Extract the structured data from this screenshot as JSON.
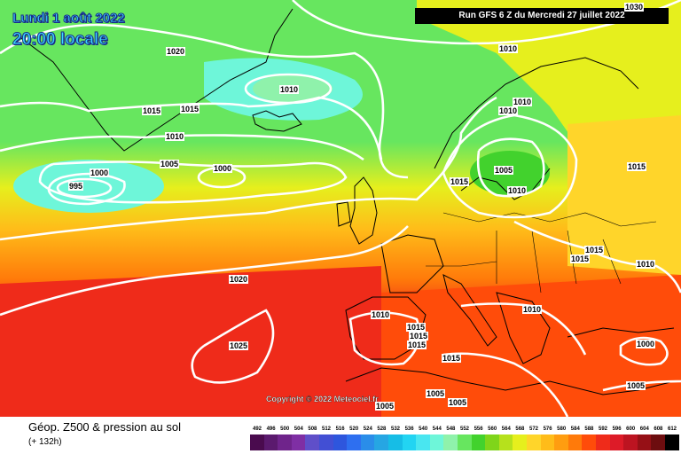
{
  "header": {
    "date_line": "Lundi 1 août 2022",
    "time_line": "20:00 locale",
    "run_info": "Run GFS 6 Z du Mercredi 27 juillet 2022"
  },
  "footer": {
    "title": "Géop. Z500 & pression au sol",
    "subtitle": "(+ 132h)",
    "copyright": "Copyright © 2022 Meteociel.fr"
  },
  "scale": {
    "values": [
      "492",
      "496",
      "500",
      "504",
      "508",
      "512",
      "516",
      "520",
      "524",
      "528",
      "532",
      "536",
      "540",
      "544",
      "548",
      "552",
      "556",
      "560",
      "564",
      "568",
      "572",
      "576",
      "580",
      "584",
      "588",
      "592",
      "596",
      "600",
      "604",
      "608",
      "612"
    ],
    "colors": [
      "#4a0b4e",
      "#5b1a6e",
      "#6f248b",
      "#7f2fa4",
      "#5f4fc9",
      "#424fd4",
      "#2e56dd",
      "#2e6ff0",
      "#2a8de9",
      "#26a6e3",
      "#16bde6",
      "#22d4f2",
      "#49e6f0",
      "#6ef6d9",
      "#8ff2ab",
      "#67e65f",
      "#42d22d",
      "#7fd51a",
      "#b6e11c",
      "#e6ef1d",
      "#ffd52a",
      "#ffbc19",
      "#ff9d10",
      "#ff7a0a",
      "#ff4c0a",
      "#ef2b1a",
      "#dd1b28",
      "#bd1421",
      "#961016",
      "#6d0d0f",
      "#000000"
    ]
  },
  "map_colors": {
    "green": "#67e65f",
    "light_green": "#8ff2ab",
    "cyan": "#6ef6d9",
    "yellow": "#e6ef1d",
    "orange": "#ff7a0a",
    "red": "#ef2b1a",
    "contour": "#ffffff",
    "coast": "#000000"
  },
  "isobar_labels": [
    {
      "value": "1030",
      "pos": "top-right"
    },
    {
      "value": "1020",
      "pos": "north-atlantic"
    },
    {
      "value": "1010",
      "pos": "iceland-low"
    },
    {
      "value": "1010",
      "pos": "norway"
    },
    {
      "value": "1015",
      "pos": "greenland-east"
    },
    {
      "value": "1015",
      "pos": "greenland-east-2"
    },
    {
      "value": "1010",
      "pos": "atlantic-mid"
    },
    {
      "value": "1010",
      "pos": "scandinavia"
    },
    {
      "value": "1010",
      "pos": "sweden-west"
    },
    {
      "value": "1005",
      "pos": "atlantic-mid"
    },
    {
      "value": "1000",
      "pos": "atlantic-mid"
    },
    {
      "value": "1000",
      "pos": "atlantic-low"
    },
    {
      "value": "995",
      "pos": "atlantic-low-center"
    },
    {
      "value": "1005",
      "pos": "baltic-low"
    },
    {
      "value": "1015",
      "pos": "north-sea"
    },
    {
      "value": "1010",
      "pos": "baltic"
    },
    {
      "value": "1015",
      "pos": "russia"
    },
    {
      "value": "1020",
      "pos": "biscay"
    },
    {
      "value": "1025",
      "pos": "azores"
    },
    {
      "value": "1010",
      "pos": "spain"
    },
    {
      "value": "1015",
      "pos": "spain-a"
    },
    {
      "value": "1015",
      "pos": "spain-b"
    },
    {
      "value": "1015",
      "pos": "spain-c"
    },
    {
      "value": "1015",
      "pos": "central-europe"
    },
    {
      "value": "1015",
      "pos": "ukraine"
    },
    {
      "value": "1010",
      "pos": "east"
    },
    {
      "value": "1010",
      "pos": "balkans"
    },
    {
      "value": "1015",
      "pos": "italy"
    },
    {
      "value": "1005",
      "pos": "africa-a"
    },
    {
      "value": "1005",
      "pos": "africa-b"
    },
    {
      "value": "1005",
      "pos": "africa-c"
    },
    {
      "value": "1000",
      "pos": "turkey"
    },
    {
      "value": "1005",
      "pos": "levant"
    }
  ]
}
